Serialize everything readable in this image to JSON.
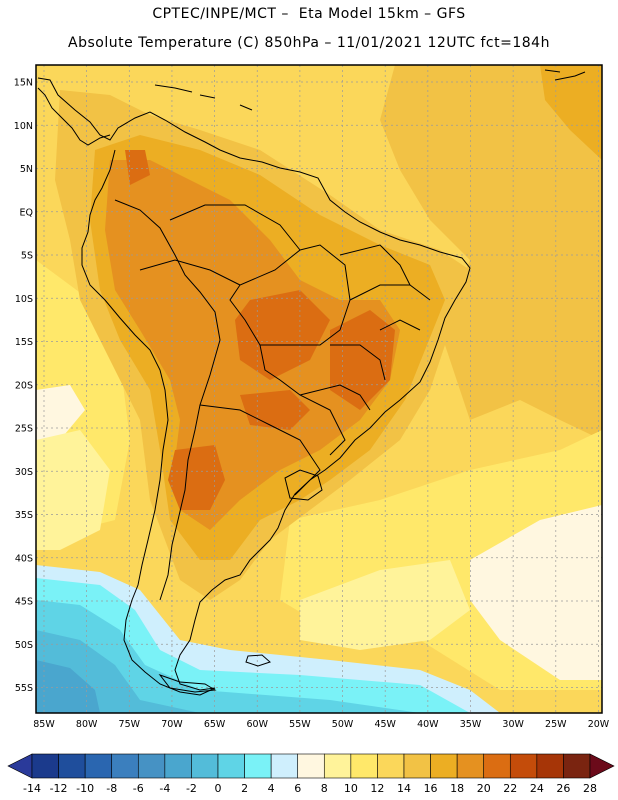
{
  "header": {
    "line1": "CPTEC/INPE/MCT –  Eta Model 15km – GFS",
    "line2": "Absolute Temperature (C) 850hPa – 11/01/2021 12UTC fct=184h"
  },
  "map": {
    "lat_labels": [
      "15N",
      "10N",
      "5N",
      "EQ",
      "5S",
      "10S",
      "15S",
      "20S",
      "25S",
      "30S",
      "35S",
      "40S",
      "45S",
      "50S",
      "55S"
    ],
    "lon_labels": [
      "85W",
      "80W",
      "75W",
      "70W",
      "65W",
      "60W",
      "55W",
      "50W",
      "45W",
      "40W",
      "35W",
      "30W",
      "25W",
      "20W"
    ]
  },
  "colorbar": {
    "labels": [
      "-14",
      "-12",
      "-10",
      "-8",
      "-6",
      "-4",
      "-2",
      "0",
      "2",
      "4",
      "6",
      "8",
      "10",
      "12",
      "14",
      "16",
      "18",
      "20",
      "22",
      "24",
      "26",
      "28"
    ],
    "colors": [
      "#1b3a8c",
      "#1f4e9c",
      "#2a66b0",
      "#3b7fbe",
      "#4692c4",
      "#4aa6ce",
      "#53bcd9",
      "#5fd4e6",
      "#7af2f7",
      "#cfeffd",
      "#fff7e0",
      "#fff39a",
      "#ffe86a",
      "#fbd75a",
      "#f2c245",
      "#ecae23",
      "#e59120",
      "#db6d12",
      "#c44c0a",
      "#a63507",
      "#7a2410"
    ],
    "under_color": "#2a3a9a",
    "over_color": "#6b0a1a"
  },
  "field_colors": {
    "t8": "#fff7e0",
    "t10": "#fff39a",
    "t12": "#ffe86a",
    "t14": "#fbd75a",
    "t16": "#f2c245",
    "t18": "#ecae23",
    "t20": "#e59120",
    "t22": "#db6d12",
    "t4": "#cfeffd",
    "t2": "#7af2f7",
    "t0": "#5fd4e6",
    "tm2": "#53bcd9",
    "tm4": "#4aa6ce"
  }
}
